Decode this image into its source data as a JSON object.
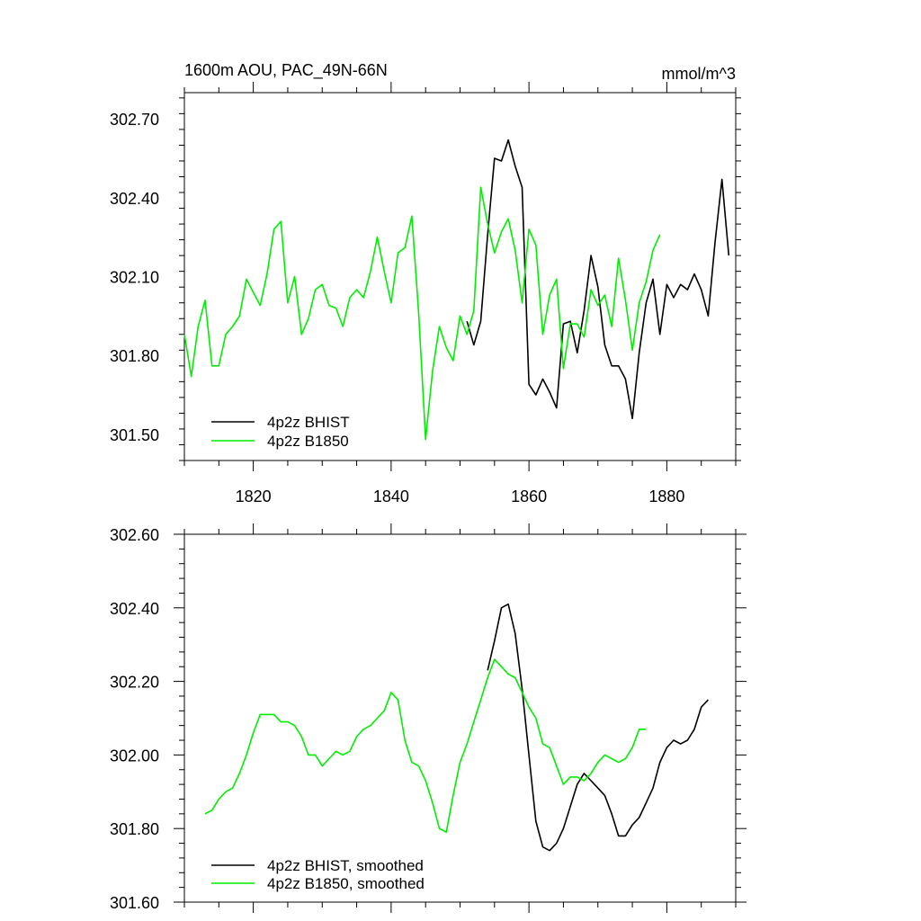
{
  "colors": {
    "bhist": "#000000",
    "b1850": "#00ee00",
    "axis": "#000000",
    "background": "#ffffff"
  },
  "chart_data": [
    {
      "type": "line",
      "title": "1600m AOU, PAC_49N-66N",
      "units": "mmol/m^3",
      "xlim": [
        1810,
        1890
      ],
      "ylim": [
        301.4,
        302.8
      ],
      "yticks": [
        301.5,
        301.8,
        302.1,
        302.4,
        302.7
      ],
      "ytick_labels": [
        "301.50",
        "301.80",
        "302.10",
        "302.40",
        "302.70"
      ],
      "xticks": [
        1820,
        1840,
        1860,
        1880
      ],
      "xtick_labels": [
        "1820",
        "1840",
        "1860",
        "1880"
      ],
      "legend": "bottom-left",
      "series": [
        {
          "name": "4p2z BHIST",
          "color": "#000000",
          "x": [
            1851,
            1852,
            1853,
            1854,
            1855,
            1856,
            1857,
            1858,
            1859,
            1860,
            1861,
            1862,
            1863,
            1864,
            1865,
            1866,
            1867,
            1868,
            1869,
            1870,
            1871,
            1872,
            1873,
            1874,
            1875,
            1876,
            1877,
            1878,
            1879,
            1880,
            1881,
            1882,
            1883,
            1884,
            1885,
            1886,
            1887,
            1888,
            1889
          ],
          "y": [
            301.93,
            301.84,
            301.93,
            302.26,
            302.55,
            302.54,
            302.62,
            302.52,
            302.44,
            301.69,
            301.65,
            301.71,
            301.66,
            301.6,
            301.92,
            301.93,
            301.81,
            301.97,
            302.18,
            302.06,
            301.84,
            301.76,
            301.76,
            301.71,
            301.56,
            301.81,
            302.0,
            302.09,
            301.88,
            302.07,
            302.02,
            302.07,
            302.05,
            302.11,
            302.05,
            301.95,
            302.23,
            302.47,
            302.18
          ]
        },
        {
          "name": "4p2z B1850",
          "color": "#00ee00",
          "x": [
            1810,
            1811,
            1812,
            1813,
            1814,
            1815,
            1816,
            1817,
            1818,
            1819,
            1820,
            1821,
            1822,
            1823,
            1824,
            1825,
            1826,
            1827,
            1828,
            1829,
            1830,
            1831,
            1832,
            1833,
            1834,
            1835,
            1836,
            1837,
            1838,
            1839,
            1840,
            1841,
            1842,
            1843,
            1844,
            1845,
            1846,
            1847,
            1848,
            1849,
            1850,
            1851,
            1852,
            1853,
            1854,
            1855,
            1856,
            1857,
            1858,
            1859,
            1860,
            1861,
            1862,
            1863,
            1864,
            1865,
            1866,
            1867,
            1868,
            1869,
            1870,
            1871,
            1872,
            1873,
            1874,
            1875,
            1876,
            1877,
            1878,
            1879
          ],
          "y": [
            301.88,
            301.72,
            301.91,
            302.01,
            301.76,
            301.76,
            301.88,
            301.91,
            301.95,
            302.09,
            302.04,
            301.99,
            302.11,
            302.28,
            302.31,
            302.0,
            302.1,
            301.88,
            301.94,
            302.05,
            302.07,
            301.99,
            301.98,
            301.91,
            302.02,
            302.05,
            302.02,
            302.12,
            302.25,
            302.12,
            302.0,
            302.19,
            302.21,
            302.33,
            301.96,
            301.48,
            301.74,
            301.91,
            301.83,
            301.78,
            301.95,
            301.88,
            301.97,
            302.44,
            302.3,
            302.19,
            302.27,
            302.32,
            302.2,
            302.0,
            302.28,
            302.22,
            301.88,
            302.03,
            302.09,
            301.75,
            301.92,
            301.92,
            301.87,
            302.05,
            301.99,
            302.03,
            301.91,
            302.17,
            302.01,
            301.82,
            302.0,
            302.08,
            302.2,
            302.26
          ]
        }
      ]
    },
    {
      "type": "line",
      "title": "",
      "xlim": [
        1810,
        1890
      ],
      "ylim": [
        301.6,
        302.6
      ],
      "yticks": [
        301.6,
        301.8,
        302.0,
        302.2,
        302.4,
        302.6
      ],
      "ytick_labels": [
        "301.60",
        "301.80",
        "302.00",
        "302.20",
        "302.40",
        "302.60"
      ],
      "xticks": [
        1820,
        1840,
        1860,
        1880
      ],
      "legend": "bottom-left",
      "series": [
        {
          "name": "4p2z BHIST, smoothed",
          "color": "#000000",
          "x": [
            1854,
            1855,
            1856,
            1857,
            1858,
            1859,
            1860,
            1861,
            1862,
            1863,
            1864,
            1865,
            1866,
            1867,
            1868,
            1869,
            1870,
            1871,
            1872,
            1873,
            1874,
            1875,
            1876,
            1877,
            1878,
            1879,
            1880,
            1881,
            1882,
            1883,
            1884,
            1885,
            1886
          ],
          "y": [
            302.23,
            302.31,
            302.4,
            302.41,
            302.33,
            302.18,
            302.0,
            301.82,
            301.75,
            301.74,
            301.76,
            301.8,
            301.86,
            301.92,
            301.95,
            301.93,
            301.91,
            301.89,
            301.84,
            301.78,
            301.78,
            301.81,
            301.83,
            301.87,
            301.91,
            301.98,
            302.02,
            302.04,
            302.03,
            302.04,
            302.07,
            302.13,
            302.15
          ]
        },
        {
          "name": "4p2z B1850, smoothed",
          "color": "#00ee00",
          "x": [
            1813,
            1814,
            1815,
            1816,
            1817,
            1818,
            1819,
            1820,
            1821,
            1822,
            1823,
            1824,
            1825,
            1826,
            1827,
            1828,
            1829,
            1830,
            1831,
            1832,
            1833,
            1834,
            1835,
            1836,
            1837,
            1838,
            1839,
            1840,
            1841,
            1842,
            1843,
            1844,
            1845,
            1846,
            1847,
            1848,
            1849,
            1850,
            1851,
            1852,
            1853,
            1854,
            1855,
            1856,
            1857,
            1858,
            1859,
            1860,
            1861,
            1862,
            1863,
            1864,
            1865,
            1866,
            1867,
            1868,
            1869,
            1870,
            1871,
            1872,
            1873,
            1874,
            1875,
            1876,
            1877
          ],
          "y": [
            301.84,
            301.85,
            301.88,
            301.9,
            301.91,
            301.95,
            302.0,
            302.06,
            302.11,
            302.11,
            302.11,
            302.09,
            302.09,
            302.08,
            302.05,
            302.0,
            302.0,
            301.97,
            301.99,
            302.01,
            302.0,
            302.01,
            302.05,
            302.07,
            302.08,
            302.1,
            302.12,
            302.17,
            302.15,
            302.04,
            301.98,
            301.97,
            301.93,
            301.87,
            301.8,
            301.79,
            301.89,
            301.98,
            302.03,
            302.09,
            302.15,
            302.21,
            302.26,
            302.24,
            302.22,
            302.21,
            302.17,
            302.13,
            302.1,
            302.03,
            302.02,
            301.97,
            301.92,
            301.94,
            301.94,
            301.93,
            301.95,
            301.98,
            302.0,
            301.99,
            301.98,
            301.99,
            302.02,
            302.07,
            302.07
          ]
        }
      ]
    }
  ]
}
